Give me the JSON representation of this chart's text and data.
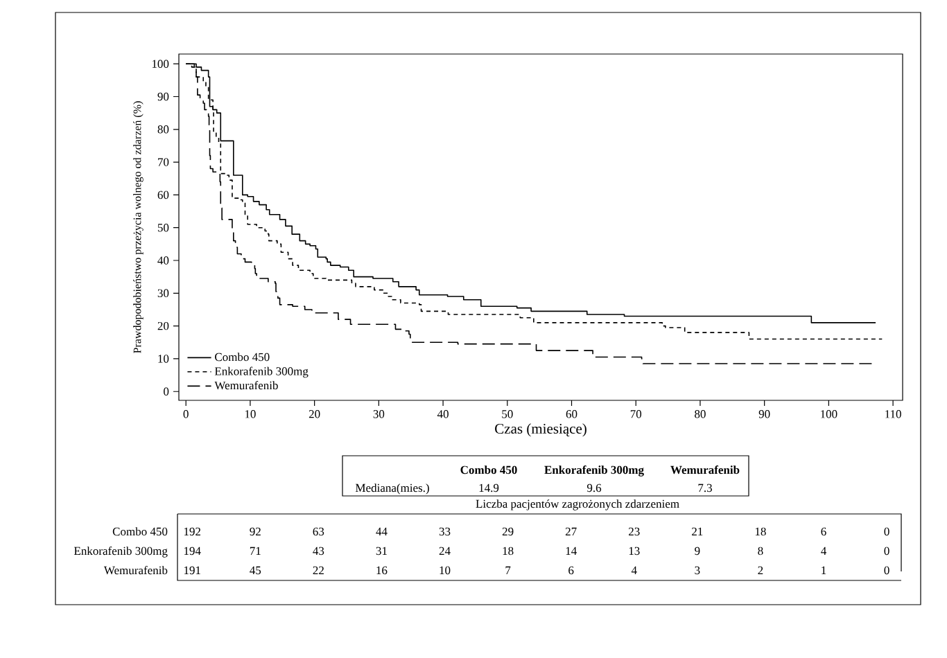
{
  "chart_data": {
    "type": "step",
    "xlabel": "Czas (miesiące)",
    "ylabel": "Prawdopodobieństwo przeżycia wolnego od zdarzeń (%)",
    "xlim": [
      -1.1,
      111.5
    ],
    "ylim": [
      -2.7,
      103
    ],
    "xticks": [
      0,
      10,
      20,
      30,
      40,
      50,
      60,
      70,
      80,
      90,
      100,
      110
    ],
    "yticks": [
      0,
      10,
      20,
      30,
      40,
      50,
      60,
      70,
      80,
      90,
      100
    ],
    "grid": false,
    "legend": "bottom left",
    "series": [
      {
        "name": "Combo 450",
        "color": "#000000",
        "line_style": "solid",
        "x": [
          0,
          1.6,
          2.4,
          3.5,
          3.7,
          4.2,
          4.8,
          5.4,
          7.4,
          8.8,
          9.6,
          10.5,
          11.4,
          12.5,
          13,
          14.6,
          15.5,
          16.5,
          17.7,
          18.6,
          19.3,
          20.2,
          20.5,
          21.8,
          22,
          22.5,
          24,
          25.3,
          26.1,
          29.1,
          32.2,
          33.1,
          35.8,
          36.3,
          40.7,
          43.2,
          45.9,
          51.5,
          53.7,
          62.4,
          68.2,
          97.3,
          107.3
        ],
        "values": [
          100,
          99,
          98,
          96,
          87,
          86,
          85,
          76.5,
          66,
          60,
          59.5,
          58,
          57,
          55.5,
          54,
          52.5,
          50.5,
          48,
          46,
          45,
          44.5,
          43.5,
          41,
          40.5,
          39.5,
          38.5,
          38,
          37,
          35,
          34.5,
          33.5,
          32,
          31,
          29.5,
          29,
          28,
          26,
          25.5,
          24.5,
          23.5,
          23,
          21,
          21
        ]
      },
      {
        "name": "Enkorafenib 300mg",
        "color": "#000000",
        "line_style": "dotted",
        "x": [
          0,
          0.9,
          1.6,
          2.7,
          3.1,
          3.5,
          4.2,
          4.3,
          4.7,
          5.1,
          5.4,
          6.2,
          6.7,
          7.2,
          8.3,
          8.8,
          9.2,
          9.6,
          11,
          12.3,
          12.8,
          12.9,
          14.2,
          14.8,
          15.9,
          16.6,
          17.5,
          19.3,
          19.8,
          21.8,
          25.8,
          26.4,
          29.3,
          30.7,
          31.5,
          32,
          33.4,
          36.3,
          36.6,
          40.8,
          52,
          54.1,
          74.1,
          74.6,
          77.6,
          87.6,
          108.3
        ],
        "values": [
          100,
          99,
          96,
          94.5,
          93,
          89,
          86,
          79,
          77.5,
          76,
          66.5,
          66,
          64.5,
          59,
          58.5,
          57.5,
          54,
          51,
          50,
          49,
          48,
          46,
          45,
          42.5,
          40.5,
          38.5,
          37,
          36,
          34.5,
          34,
          33,
          32,
          31,
          30,
          29,
          28,
          27,
          26.5,
          24.5,
          23.5,
          22.5,
          21,
          20,
          19.5,
          18,
          16,
          16
        ]
      },
      {
        "name": "Wemurafenib",
        "color": "#000000",
        "line_style": "dashed",
        "x": [
          0,
          1.3,
          1.6,
          1.8,
          2.2,
          2.7,
          2.9,
          3.2,
          3.5,
          3.6,
          3.7,
          3.8,
          4.2,
          5.3,
          5.4,
          5.6,
          7.2,
          7.4,
          7.7,
          8,
          8.6,
          9.2,
          10.2,
          10.7,
          10.8,
          11,
          12.8,
          13.9,
          14,
          14.3,
          14.6,
          16.6,
          18.5,
          19.6,
          23.7,
          25.6,
          32.6,
          33.8,
          34.7,
          34.9,
          42.3,
          54.5,
          63.3,
          70.9,
          71.1,
          106.8
        ],
        "values": [
          100,
          99,
          96,
          90.5,
          89.5,
          88,
          86,
          85,
          84,
          80,
          72,
          68,
          67,
          64,
          56,
          52.5,
          49,
          46,
          44,
          42,
          40.5,
          39.5,
          39,
          37.5,
          36,
          34.5,
          33.5,
          33,
          30.5,
          28.5,
          26.5,
          26,
          25,
          24,
          22,
          20.5,
          19,
          18.5,
          17.5,
          15,
          14.5,
          12.5,
          10.5,
          10,
          8.5,
          8.5
        ]
      }
    ],
    "annotations": [
      "Mediana(mies.)",
      "14.9",
      "9.6",
      "7.3",
      "Liczba pacjentów zagrożonych zdarzeniem",
      "192",
      "92",
      "63",
      "44",
      "33",
      "29",
      "27",
      "23",
      "21",
      "18",
      "6",
      "0",
      "194",
      "71",
      "43",
      "31",
      "24",
      "18",
      "14",
      "13",
      "9",
      "8",
      "4",
      "0",
      "191",
      "45",
      "22",
      "16",
      "10",
      "7",
      "6",
      "4",
      "3",
      "2",
      "1",
      "0"
    ]
  }
}
